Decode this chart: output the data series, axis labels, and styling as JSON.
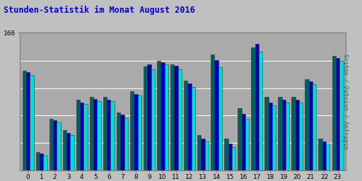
{
  "title": "Stunden-Statistik im Monat August 2016",
  "ylabel_right": "Seiten / Dateien / Anfragen",
  "hours": [
    0,
    1,
    2,
    3,
    4,
    5,
    6,
    7,
    8,
    9,
    10,
    11,
    12,
    13,
    14,
    15,
    16,
    17,
    18,
    19,
    20,
    21,
    22,
    23
  ],
  "seiten": [
    120,
    22,
    62,
    48,
    85,
    88,
    88,
    70,
    95,
    125,
    132,
    128,
    108,
    42,
    140,
    38,
    75,
    148,
    88,
    88,
    88,
    110,
    38,
    138
  ],
  "dateien": [
    118,
    20,
    60,
    45,
    82,
    86,
    85,
    67,
    92,
    128,
    130,
    126,
    105,
    38,
    133,
    32,
    68,
    152,
    82,
    85,
    85,
    107,
    35,
    135
  ],
  "anfragen": [
    115,
    18,
    58,
    42,
    80,
    83,
    83,
    63,
    90,
    122,
    128,
    122,
    100,
    35,
    124,
    28,
    62,
    143,
    78,
    82,
    82,
    104,
    32,
    132
  ],
  "color_seiten": "#006060",
  "color_dateien": "#0000BB",
  "color_anfragen": "#00DDDD",
  "bg_color": "#C0C0C0",
  "plot_bg": "#AAAAAA",
  "title_color": "#0000CC",
  "ylabel_right_color": "#008080",
  "ylim_max": 166,
  "ytick_vals": [
    166
  ],
  "bar_width": 0.28,
  "figsize": [
    5.12,
    2.56
  ],
  "dpi": 100,
  "gridline_vals": [
    33,
    66,
    99,
    132,
    166
  ]
}
